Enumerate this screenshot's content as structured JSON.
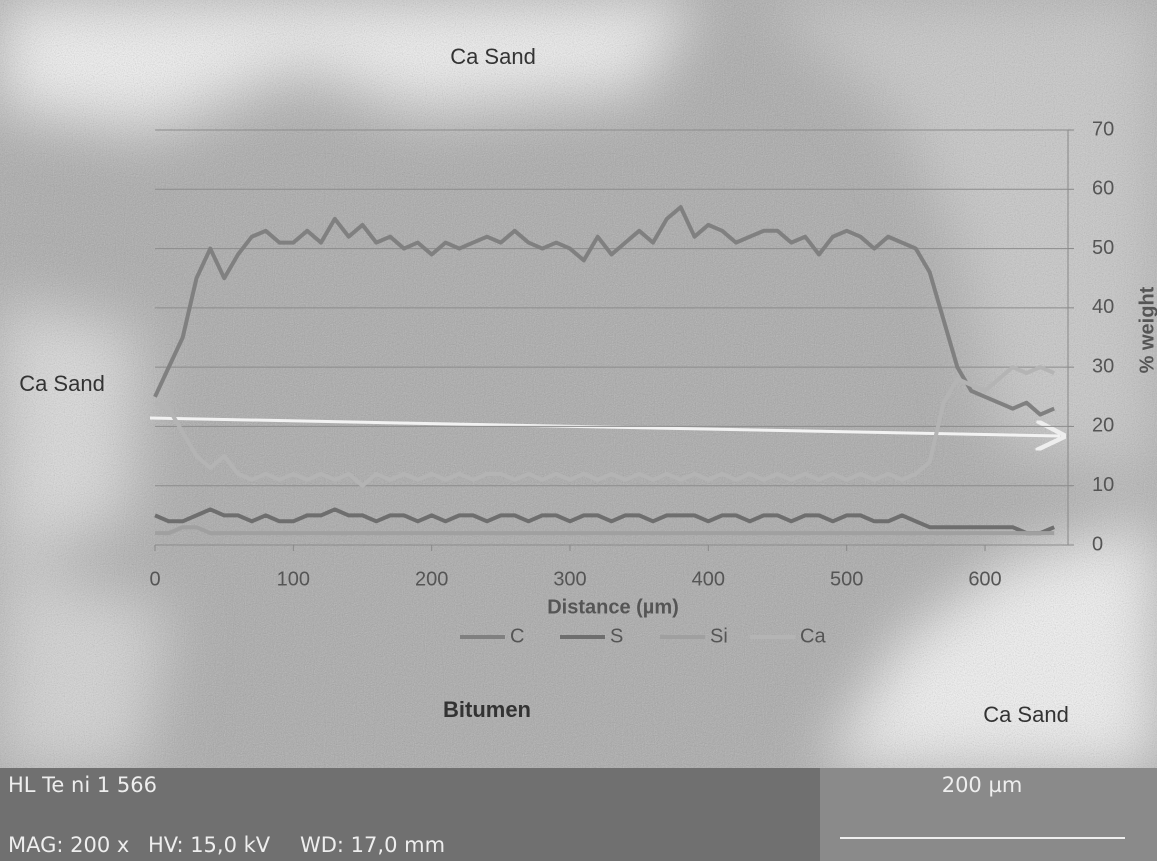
{
  "chart_data": {
    "type": "line",
    "x_label": "Distance (µm)",
    "y_label": "% weight",
    "annotations": [
      "Ca Sand",
      "Ca Sand",
      "Bitumen",
      "Ca Sand"
    ],
    "image_info": [
      "HL Te ni 1 566",
      "MAG: 200 x",
      "HV: 15,0 kV",
      "WD: 17,0 mm",
      "200 µm"
    ],
    "x": [
      0,
      10,
      20,
      30,
      40,
      50,
      60,
      70,
      80,
      90,
      100,
      110,
      120,
      130,
      140,
      150,
      160,
      170,
      180,
      190,
      200,
      210,
      220,
      230,
      240,
      250,
      260,
      270,
      280,
      290,
      300,
      310,
      320,
      330,
      340,
      350,
      360,
      370,
      380,
      390,
      400,
      410,
      420,
      430,
      440,
      450,
      460,
      470,
      480,
      490,
      500,
      510,
      520,
      530,
      540,
      550,
      560,
      570,
      580,
      590,
      600,
      610,
      620,
      630,
      640,
      650
    ],
    "series": [
      {
        "name": "C",
        "color": "#808080",
        "values": [
          25,
          30,
          35,
          45,
          50,
          45,
          49,
          52,
          53,
          51,
          51,
          53,
          51,
          55,
          52,
          54,
          51,
          52,
          50,
          51,
          49,
          51,
          50,
          51,
          52,
          51,
          53,
          51,
          50,
          51,
          50,
          48,
          52,
          49,
          51,
          53,
          51,
          55,
          57,
          52,
          54,
          53,
          51,
          52,
          53,
          53,
          51,
          52,
          49,
          52,
          53,
          52,
          50,
          52,
          51,
          50,
          46,
          38,
          30,
          26,
          25,
          24,
          23,
          24,
          22,
          23
        ]
      },
      {
        "name": "S",
        "color": "#6e6e6e",
        "values": [
          5,
          4,
          4,
          5,
          6,
          5,
          5,
          4,
          5,
          4,
          4,
          5,
          5,
          6,
          5,
          5,
          4,
          5,
          5,
          4,
          5,
          4,
          5,
          5,
          4,
          5,
          5,
          4,
          5,
          5,
          4,
          5,
          5,
          4,
          5,
          5,
          4,
          5,
          5,
          5,
          4,
          5,
          5,
          4,
          5,
          5,
          4,
          5,
          5,
          4,
          5,
          5,
          4,
          4,
          5,
          4,
          3,
          3,
          3,
          3,
          3,
          3,
          3,
          2,
          2,
          3
        ]
      },
      {
        "name": "Si",
        "color": "#a0a0a0",
        "values": [
          2,
          2,
          3,
          3,
          2,
          2,
          2,
          2,
          2,
          2,
          2,
          2,
          2,
          2,
          2,
          2,
          2,
          2,
          2,
          2,
          2,
          2,
          2,
          2,
          2,
          2,
          2,
          2,
          2,
          2,
          2,
          2,
          2,
          2,
          2,
          2,
          2,
          2,
          2,
          2,
          2,
          2,
          2,
          2,
          2,
          2,
          2,
          2,
          2,
          2,
          2,
          2,
          2,
          2,
          2,
          2,
          2,
          2,
          2,
          2,
          2,
          2,
          2,
          2,
          2,
          2
        ]
      },
      {
        "name": "Ca",
        "color": "#b4b4b4",
        "values": [
          24,
          23,
          19,
          15,
          13,
          15,
          12,
          11,
          12,
          11,
          12,
          11,
          12,
          11,
          12,
          10,
          12,
          11,
          12,
          11,
          12,
          11,
          12,
          11,
          12,
          12,
          11,
          12,
          11,
          12,
          11,
          12,
          11,
          12,
          11,
          12,
          11,
          12,
          11,
          12,
          11,
          12,
          11,
          12,
          11,
          12,
          11,
          12,
          11,
          12,
          11,
          12,
          11,
          12,
          11,
          12,
          14,
          24,
          28,
          27,
          26,
          28,
          30,
          29,
          30,
          29
        ]
      }
    ],
    "xlim": [
      0,
      660
    ],
    "xticks": [
      0,
      100,
      200,
      300,
      400,
      500,
      600
    ],
    "ylim": [
      0,
      70
    ],
    "yticks": [
      0,
      10,
      20,
      30,
      40,
      50,
      60,
      70
    ],
    "y_axis_side": "right",
    "grid": true
  }
}
